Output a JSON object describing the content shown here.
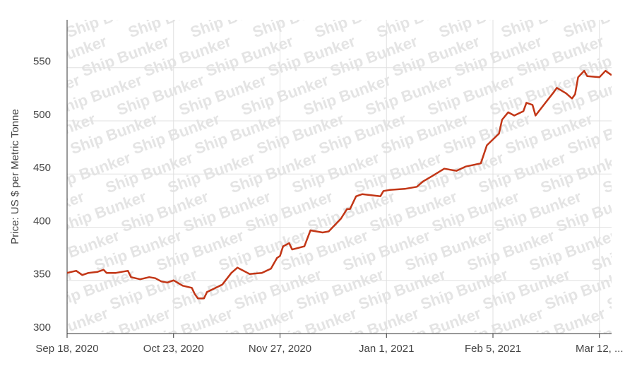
{
  "chart_data": {
    "type": "line",
    "y_label": "Price: US $ per Metric Tonne",
    "watermark": "Ship Bunker",
    "x": [
      "2020-09-18",
      "2020-09-21",
      "2020-09-23",
      "2020-09-25",
      "2020-09-28",
      "2020-09-30",
      "2020-10-01",
      "2020-10-04",
      "2020-10-08",
      "2020-10-09",
      "2020-10-12",
      "2020-10-15",
      "2020-10-17",
      "2020-10-19",
      "2020-10-21",
      "2020-10-23",
      "2020-10-26",
      "2020-10-29",
      "2020-10-30",
      "2020-10-31",
      "2020-11-02",
      "2020-11-03",
      "2020-11-08",
      "2020-11-11",
      "2020-11-13",
      "2020-11-17",
      "2020-11-21",
      "2020-11-24",
      "2020-11-26",
      "2020-11-27",
      "2020-11-28",
      "2020-11-30",
      "2020-12-01",
      "2020-12-05",
      "2020-12-07",
      "2020-12-11",
      "2020-12-13",
      "2020-12-17",
      "2020-12-19",
      "2020-12-20",
      "2020-12-22",
      "2020-12-24",
      "2020-12-30",
      "2020-12-31",
      "2021-01-02",
      "2021-01-07",
      "2021-01-11",
      "2021-01-13",
      "2021-01-16",
      "2021-01-20",
      "2021-01-24",
      "2021-01-27",
      "2021-02-01",
      "2021-02-03",
      "2021-02-07",
      "2021-02-08",
      "2021-02-10",
      "2021-02-12",
      "2021-02-15",
      "2021-02-16",
      "2021-02-18",
      "2021-02-19",
      "2021-02-22",
      "2021-02-25",
      "2021-02-26",
      "2021-03-01",
      "2021-03-03",
      "2021-03-04",
      "2021-03-05",
      "2021-03-07",
      "2021-03-08",
      "2021-03-12",
      "2021-03-14",
      "2021-03-15",
      "2021-03-16"
    ],
    "series": [
      {
        "name": "Price",
        "color": "#c23616",
        "values": [
          357,
          359,
          355,
          357,
          358,
          360,
          357,
          357,
          359,
          353,
          351,
          353,
          352,
          349,
          348,
          350,
          345,
          343,
          337,
          333,
          333,
          339,
          346,
          357,
          362,
          356,
          357,
          361,
          371,
          373,
          382,
          385,
          379,
          382,
          397,
          395,
          396,
          408,
          417,
          417,
          429,
          431,
          429,
          434,
          435,
          436,
          438,
          443,
          448,
          455,
          453,
          457,
          460,
          477,
          488,
          501,
          508,
          505,
          509,
          517,
          515,
          505,
          516,
          527,
          531,
          526,
          521,
          525,
          541,
          547,
          542,
          541,
          547,
          545,
          543
        ]
      }
    ],
    "xlim": [
      "2020-09-18",
      "2021-03-16"
    ],
    "xticks": [
      {
        "value": "2020-09-18",
        "label": "Sep 18, 2020"
      },
      {
        "value": "2020-10-23",
        "label": "Oct 23, 2020"
      },
      {
        "value": "2020-11-27",
        "label": "Nov 27, 2020"
      },
      {
        "value": "2021-01-01",
        "label": "Jan 1, 2021"
      },
      {
        "value": "2021-02-05",
        "label": "Feb 5, 2021"
      },
      {
        "value": "2021-03-12",
        "label": "Mar 12, ..."
      }
    ],
    "ylim": [
      300,
      595
    ],
    "yticks": [
      300,
      350,
      400,
      450,
      500,
      550
    ],
    "grid": true
  }
}
